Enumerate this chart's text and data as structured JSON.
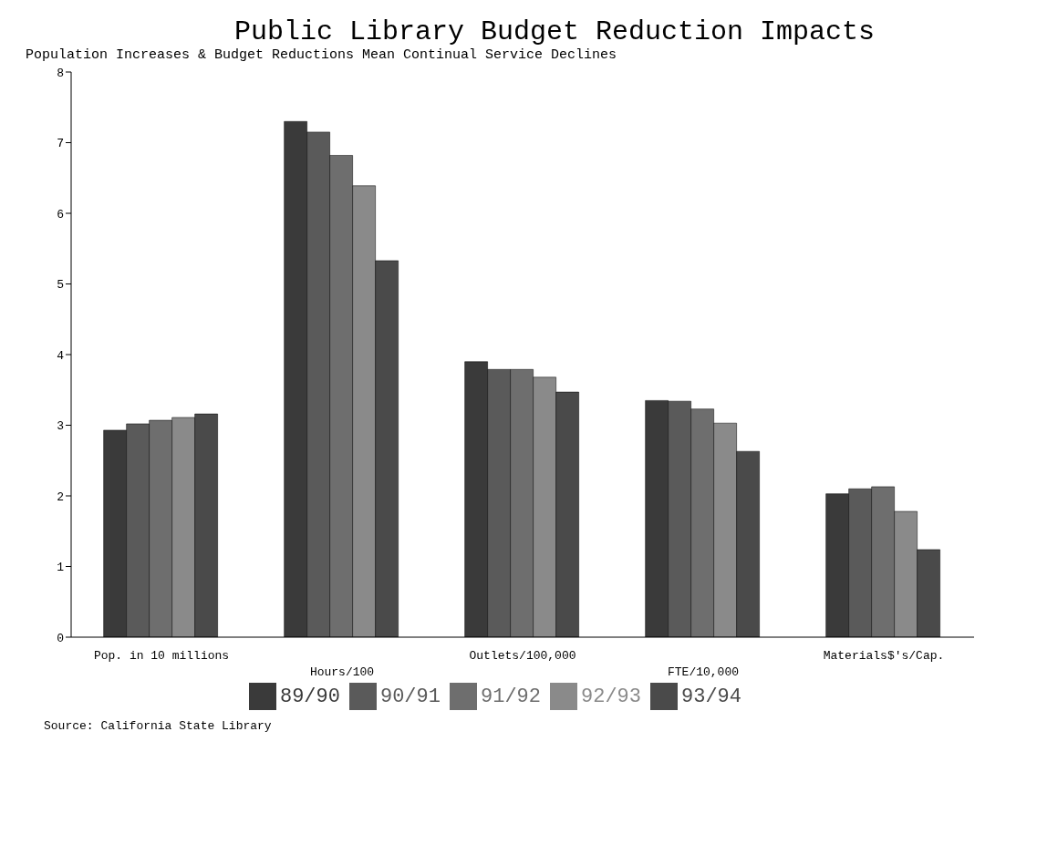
{
  "chart_data": {
    "type": "bar",
    "title": "Public Library Budget Reduction Impacts",
    "subtitle": "Population Increases & Budget Reductions Mean Continual Service Declines",
    "categories": [
      "Pop. in 10 millions",
      "Hours/100",
      "Outlets/100,000",
      "FTE/10,000",
      "Materials$'s/Cap."
    ],
    "series": [
      {
        "name": "89/90",
        "color": "#3a3a3a",
        "values": [
          2.93,
          7.3,
          3.9,
          3.35,
          2.03
        ]
      },
      {
        "name": "90/91",
        "color": "#5a5a5a",
        "values": [
          3.02,
          7.15,
          3.79,
          3.34,
          2.1
        ]
      },
      {
        "name": "91/92",
        "color": "#6e6e6e",
        "values": [
          3.07,
          6.82,
          3.79,
          3.23,
          2.13
        ]
      },
      {
        "name": "92/93",
        "color": "#8a8a8a",
        "values": [
          3.11,
          6.39,
          3.68,
          3.03,
          1.78
        ]
      },
      {
        "name": "93/94",
        "color": "#4a4a4a",
        "values": [
          3.16,
          5.33,
          3.47,
          2.63,
          1.24
        ]
      }
    ],
    "ylim": [
      0,
      8
    ],
    "yticks": [
      0,
      1,
      2,
      3,
      4,
      5,
      6,
      7,
      8
    ],
    "legend": "bottom",
    "annotations": [
      "Source: California State Library"
    ]
  }
}
